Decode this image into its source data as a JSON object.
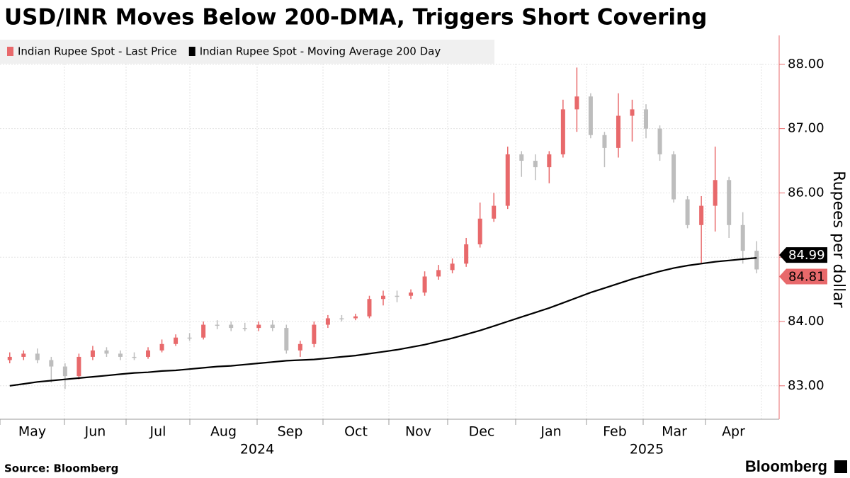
{
  "chart_data": {
    "type": "candlestick",
    "title": "USD/INR Moves Below 200-DMA, Triggers Short Covering",
    "y_axis_label": "Rupees per dollar",
    "source": "Source: Bloomberg",
    "brand": "Bloomberg",
    "months": [
      "May",
      "Jun",
      "Jul",
      "Aug",
      "Sep",
      "Oct",
      "Nov",
      "Dec",
      "Jan",
      "Feb",
      "Mar",
      "Apr"
    ],
    "years": [
      "2024",
      "2025"
    ],
    "up_color": "#e8696b",
    "down_color": "#bdbdbd",
    "ylim": [
      82.48,
      88.45
    ],
    "yticks": [
      {
        "value": 83,
        "label": "83.00"
      },
      {
        "value": 84,
        "label": "84.00"
      },
      {
        "value": 85,
        "label": "85.00"
      },
      {
        "value": 86,
        "label": "86.00"
      },
      {
        "value": 87,
        "label": "87.00"
      },
      {
        "value": 88,
        "label": "88.00"
      }
    ],
    "grid": true,
    "series": [
      {
        "name": "Indian Rupee Spot - Last Price",
        "color": "#e8696b",
        "open": [
          83.4,
          83.45,
          83.5,
          83.4,
          83.3,
          83.15,
          83.45,
          83.55,
          83.5,
          83.45,
          83.45,
          83.55,
          83.65,
          83.75,
          83.75,
          83.95,
          83.95,
          83.9,
          83.9,
          83.95,
          83.9,
          83.55,
          83.65,
          83.95,
          84.05,
          84.05,
          84.08,
          84.35,
          84.4,
          84.4,
          84.45,
          84.7,
          84.8,
          84.9,
          85.2,
          85.6,
          85.8,
          86.6,
          86.5,
          86.4,
          86.6,
          87.3,
          87.5,
          86.9,
          86.7,
          87.2,
          87.3,
          87.0,
          86.6,
          85.9,
          85.5,
          85.8,
          86.2,
          85.5,
          85.1
        ],
        "high": [
          83.52,
          83.55,
          83.58,
          83.45,
          83.35,
          83.5,
          83.62,
          83.6,
          83.55,
          83.52,
          83.6,
          83.72,
          83.8,
          83.82,
          84.0,
          84.02,
          84.0,
          83.98,
          84.0,
          84.02,
          83.95,
          83.7,
          84.0,
          84.1,
          84.1,
          84.12,
          84.4,
          84.48,
          84.48,
          84.5,
          84.78,
          84.88,
          84.98,
          85.3,
          85.85,
          86.0,
          86.72,
          86.65,
          86.6,
          86.65,
          87.45,
          87.95,
          87.55,
          86.95,
          87.55,
          87.45,
          87.38,
          87.05,
          86.65,
          85.95,
          85.95,
          86.72,
          86.25,
          85.7,
          85.25
        ],
        "low": [
          83.35,
          83.4,
          83.35,
          83.05,
          82.95,
          83.1,
          83.4,
          83.45,
          83.4,
          83.4,
          83.42,
          83.52,
          83.62,
          83.7,
          83.72,
          83.88,
          83.85,
          83.85,
          83.85,
          83.85,
          83.5,
          83.45,
          83.6,
          83.9,
          84.0,
          84.02,
          84.05,
          84.25,
          84.3,
          84.35,
          84.4,
          84.65,
          84.75,
          84.85,
          85.15,
          85.55,
          85.75,
          86.25,
          86.2,
          86.15,
          86.55,
          86.95,
          86.85,
          86.4,
          86.55,
          86.8,
          86.85,
          86.5,
          85.85,
          85.45,
          84.9,
          85.4,
          85.3,
          84.9,
          84.75
        ],
        "values": [
          83.45,
          83.5,
          83.4,
          83.3,
          83.15,
          83.45,
          83.55,
          83.5,
          83.45,
          83.45,
          83.55,
          83.65,
          83.75,
          83.75,
          83.95,
          83.95,
          83.9,
          83.9,
          83.95,
          83.9,
          83.55,
          83.65,
          83.95,
          84.05,
          84.05,
          84.08,
          84.35,
          84.4,
          84.4,
          84.45,
          84.7,
          84.8,
          84.9,
          85.2,
          85.6,
          85.8,
          86.6,
          86.5,
          86.4,
          86.6,
          87.3,
          87.5,
          86.9,
          86.7,
          87.2,
          87.3,
          87.0,
          86.6,
          85.9,
          85.5,
          85.8,
          86.2,
          85.5,
          85.1,
          84.81
        ]
      },
      {
        "name": "Indian Rupee Spot - Moving Average 200 Day",
        "color": "#000000",
        "values": [
          83.0,
          83.03,
          83.06,
          83.08,
          83.1,
          83.12,
          83.14,
          83.16,
          83.18,
          83.2,
          83.21,
          83.23,
          83.24,
          83.26,
          83.28,
          83.3,
          83.31,
          83.33,
          83.35,
          83.37,
          83.39,
          83.4,
          83.41,
          83.43,
          83.45,
          83.47,
          83.5,
          83.53,
          83.56,
          83.6,
          83.64,
          83.69,
          83.74,
          83.8,
          83.86,
          83.93,
          84.0,
          84.07,
          84.14,
          84.21,
          84.29,
          84.37,
          84.45,
          84.52,
          84.59,
          84.66,
          84.72,
          84.78,
          84.83,
          84.87,
          84.9,
          84.93,
          84.95,
          84.97,
          84.99
        ]
      }
    ]
  }
}
